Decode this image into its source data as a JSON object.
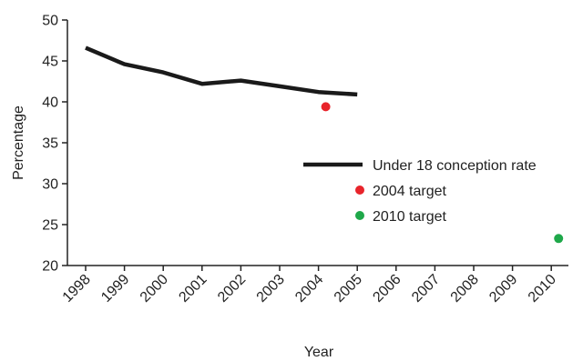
{
  "chart_data": {
    "type": "line",
    "title": "",
    "xlabel": "Year",
    "ylabel": "Percentage",
    "x_ticks": [
      "1998",
      "1999",
      "2000",
      "2001",
      "2002",
      "2003",
      "2004",
      "2005",
      "2006",
      "2007",
      "2008",
      "2009",
      "2010"
    ],
    "ylim": [
      20,
      50
    ],
    "y_ticks": [
      20,
      25,
      30,
      35,
      40,
      45,
      50
    ],
    "grid": false,
    "legend_position": "right",
    "series": [
      {
        "name": "Under 18 conception rate",
        "type": "line",
        "color": "#1a1a1a",
        "points": [
          {
            "x": 1998,
            "y": 46.6
          },
          {
            "x": 1999,
            "y": 44.6
          },
          {
            "x": 2000,
            "y": 43.6
          },
          {
            "x": 2001,
            "y": 42.2
          },
          {
            "x": 2002,
            "y": 42.6
          },
          {
            "x": 2003,
            "y": 41.9
          },
          {
            "x": 2004,
            "y": 41.2
          },
          {
            "x": 2005,
            "y": 40.9
          }
        ]
      },
      {
        "name": "2004 target",
        "type": "scatter",
        "color": "#e8242b",
        "points": [
          {
            "x": 2004,
            "y": 39.4
          }
        ]
      },
      {
        "name": "2010 target",
        "type": "scatter",
        "color": "#1fa84a",
        "points": [
          {
            "x": 2010,
            "y": 23.3
          }
        ]
      }
    ]
  }
}
